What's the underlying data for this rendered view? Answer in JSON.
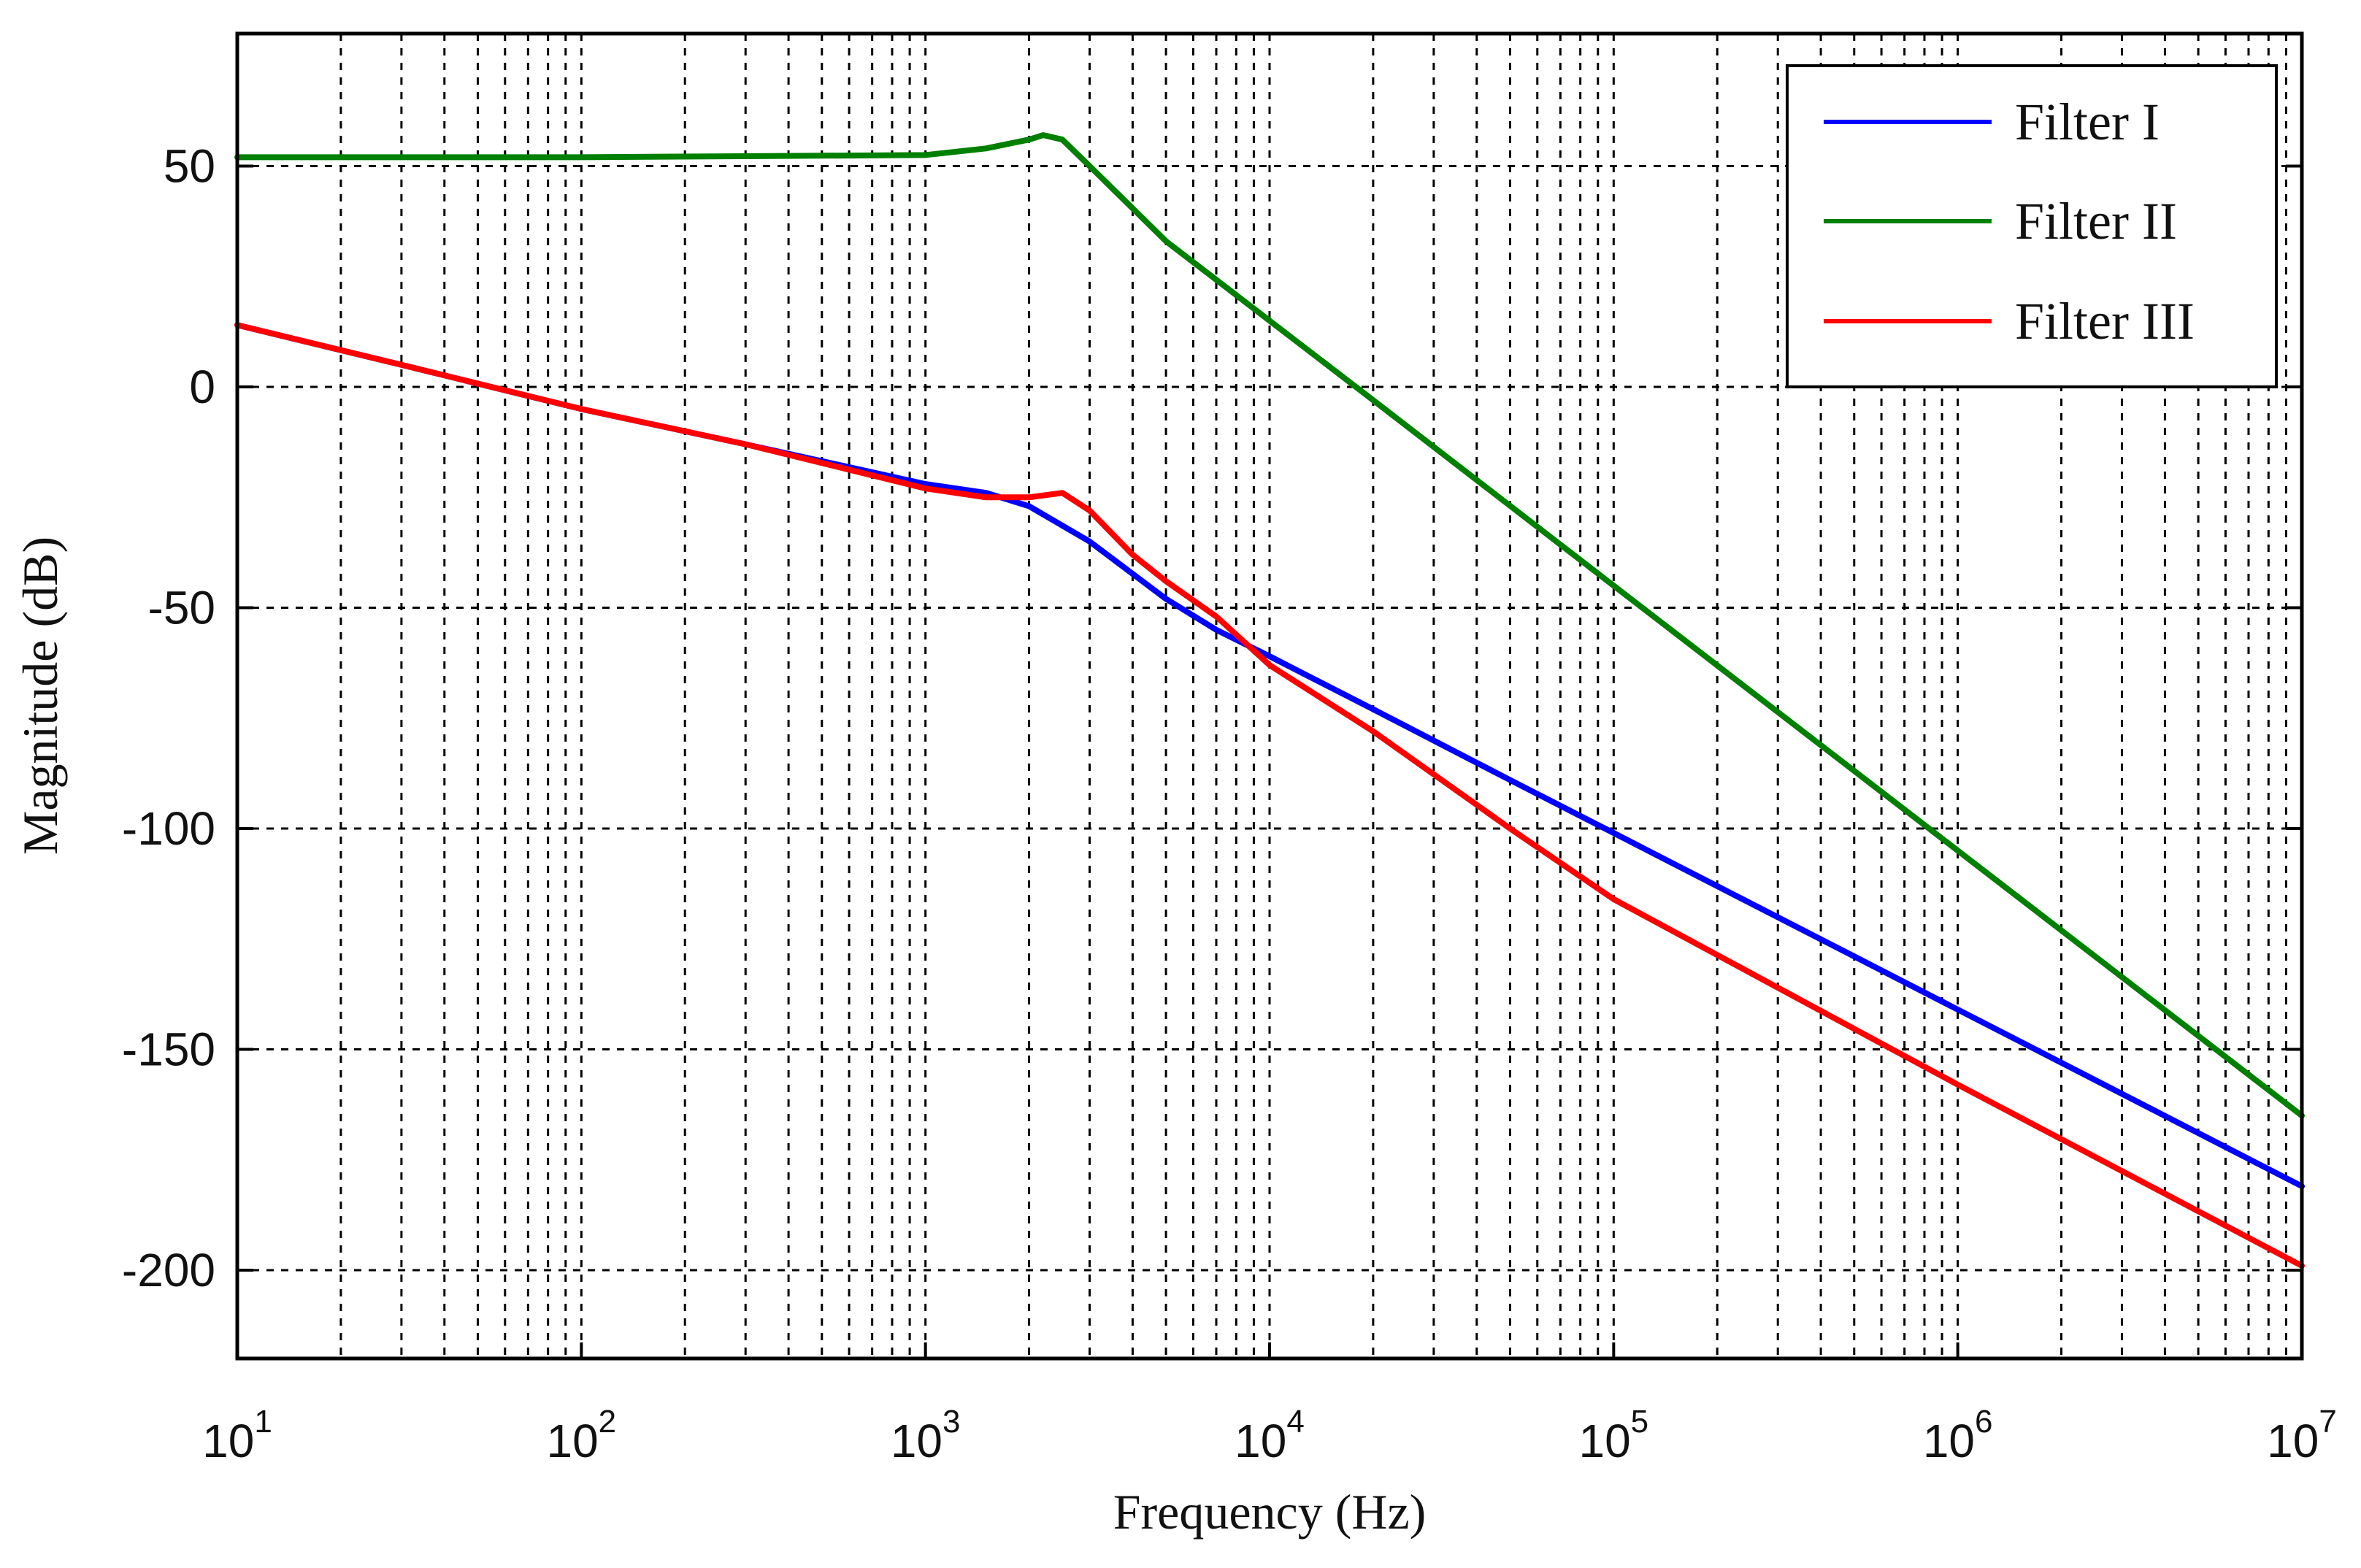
{
  "chart_data": {
    "type": "line",
    "title": "",
    "xlabel": "Frequency (Hz)",
    "ylabel": "Magnitude (dB)",
    "xscale": "log",
    "xlim": [
      10,
      10000000
    ],
    "ylim": [
      -220,
      80
    ],
    "grid": true,
    "grid_style": "dashed",
    "legend_position": "top-right",
    "x_ticks": [
      {
        "value": 10,
        "base": "10",
        "exp": "1"
      },
      {
        "value": 100,
        "base": "10",
        "exp": "2"
      },
      {
        "value": 1000,
        "base": "10",
        "exp": "3"
      },
      {
        "value": 10000,
        "base": "10",
        "exp": "4"
      },
      {
        "value": 100000,
        "base": "10",
        "exp": "5"
      },
      {
        "value": 1000000,
        "base": "10",
        "exp": "6"
      },
      {
        "value": 10000000,
        "base": "10",
        "exp": "7"
      }
    ],
    "y_ticks": [
      {
        "value": 50,
        "label": "50"
      },
      {
        "value": 0,
        "label": "0"
      },
      {
        "value": -50,
        "label": "-50"
      },
      {
        "value": -100,
        "label": "-100"
      },
      {
        "value": -150,
        "label": "-150"
      },
      {
        "value": -200,
        "label": "-200"
      }
    ],
    "series": [
      {
        "name": "Filter I",
        "color": "#0000ff",
        "points": [
          [
            10,
            14
          ],
          [
            30,
            5
          ],
          [
            100,
            -5
          ],
          [
            300,
            -13
          ],
          [
            1000,
            -22
          ],
          [
            1500,
            -24
          ],
          [
            2000,
            -27
          ],
          [
            3000,
            -35
          ],
          [
            5000,
            -48
          ],
          [
            7000,
            -55
          ],
          [
            10000,
            -61
          ],
          [
            20000,
            -73
          ],
          [
            50000,
            -89
          ],
          [
            100000,
            -101
          ],
          [
            1000000,
            -141
          ],
          [
            10000000,
            -181
          ]
        ]
      },
      {
        "name": "Filter II",
        "color": "#008000",
        "points": [
          [
            10,
            52
          ],
          [
            100,
            52
          ],
          [
            1000,
            52.5
          ],
          [
            1500,
            54
          ],
          [
            2000,
            56
          ],
          [
            2200,
            57
          ],
          [
            2500,
            56
          ],
          [
            3000,
            50
          ],
          [
            5000,
            33
          ],
          [
            10000,
            15
          ],
          [
            20000,
            -3
          ],
          [
            100000,
            -45
          ],
          [
            1000000,
            -105
          ],
          [
            10000000,
            -165
          ]
        ]
      },
      {
        "name": "Filter III",
        "color": "#ff0000",
        "points": [
          [
            10,
            14
          ],
          [
            30,
            5
          ],
          [
            100,
            -5
          ],
          [
            300,
            -13
          ],
          [
            1000,
            -23
          ],
          [
            1500,
            -25
          ],
          [
            2000,
            -25
          ],
          [
            2500,
            -24
          ],
          [
            3000,
            -28
          ],
          [
            4000,
            -38
          ],
          [
            5000,
            -44
          ],
          [
            7000,
            -52
          ],
          [
            10000,
            -63
          ],
          [
            20000,
            -78
          ],
          [
            50000,
            -100
          ],
          [
            100000,
            -116
          ],
          [
            1000000,
            -158
          ],
          [
            10000000,
            -199
          ]
        ]
      }
    ]
  }
}
